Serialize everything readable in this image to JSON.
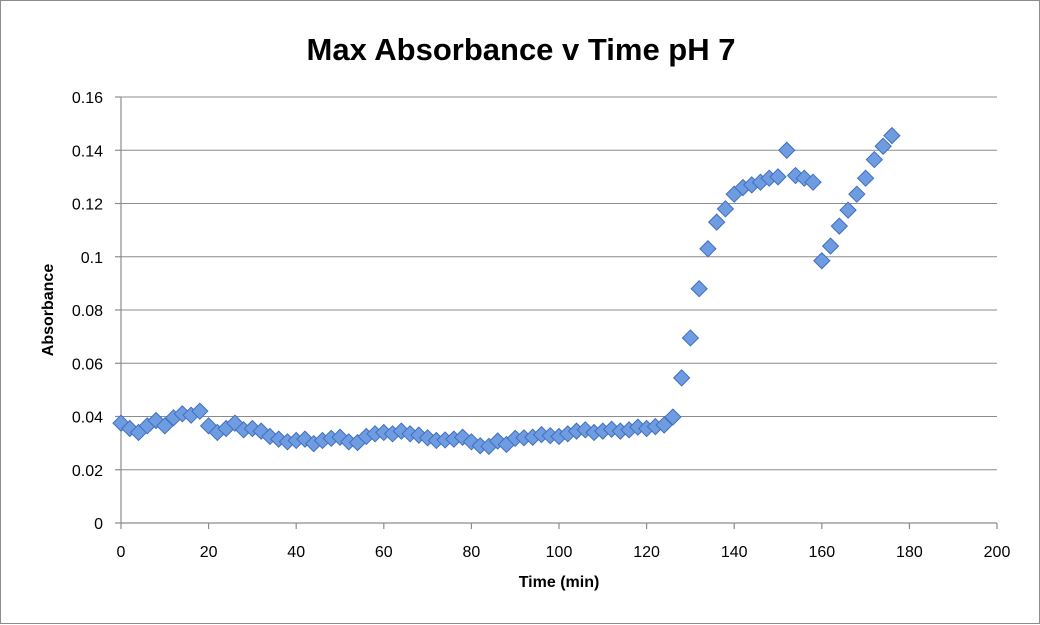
{
  "chart_data": {
    "type": "scatter",
    "title": "Max Absorbance v Time pH 7",
    "xlabel": "Time (min)",
    "ylabel": "Absorbance",
    "xlim": [
      0,
      200
    ],
    "ylim": [
      0,
      0.16
    ],
    "xticks": [
      "0",
      "20",
      "40",
      "60",
      "80",
      "100",
      "120",
      "140",
      "160",
      "180",
      "200"
    ],
    "yticks": [
      "0",
      "0.02",
      "0.04",
      "0.06",
      "0.08",
      "0.1",
      "0.12",
      "0.14",
      "0.16"
    ],
    "grid": true,
    "legend": "none",
    "marker": "diamond",
    "series_color": "#6f9be0",
    "x": [
      0,
      2,
      4,
      6,
      8,
      10,
      12,
      14,
      16,
      18,
      20,
      22,
      24,
      26,
      28,
      30,
      32,
      34,
      36,
      38,
      40,
      42,
      44,
      46,
      48,
      50,
      52,
      54,
      56,
      58,
      60,
      62,
      64,
      66,
      68,
      70,
      72,
      74,
      76,
      78,
      80,
      82,
      84,
      86,
      88,
      90,
      92,
      94,
      96,
      98,
      100,
      102,
      104,
      106,
      108,
      110,
      112,
      114,
      116,
      118,
      120,
      122,
      124,
      126,
      128,
      130,
      132,
      134,
      136,
      138,
      140,
      142,
      144,
      146,
      148,
      150,
      152,
      154,
      156,
      158,
      160,
      162,
      164,
      166,
      168,
      170,
      172,
      174,
      176
    ],
    "y": [
      0.0375,
      0.0355,
      0.034,
      0.0365,
      0.0385,
      0.0365,
      0.0395,
      0.041,
      0.0405,
      0.042,
      0.0365,
      0.034,
      0.0355,
      0.0375,
      0.035,
      0.0355,
      0.0345,
      0.0325,
      0.0315,
      0.0305,
      0.031,
      0.0315,
      0.0298,
      0.031,
      0.0318,
      0.0322,
      0.0305,
      0.0302,
      0.0325,
      0.0335,
      0.034,
      0.0335,
      0.0345,
      0.0335,
      0.033,
      0.032,
      0.031,
      0.0312,
      0.0315,
      0.0322,
      0.0305,
      0.029,
      0.0288,
      0.0308,
      0.0295,
      0.0318,
      0.032,
      0.0322,
      0.0332,
      0.0328,
      0.0325,
      0.0335,
      0.0345,
      0.035,
      0.034,
      0.0345,
      0.0352,
      0.0345,
      0.035,
      0.036,
      0.0355,
      0.0362,
      0.0368,
      0.0398,
      0.0545,
      0.0695,
      0.088,
      0.103,
      0.113,
      0.118,
      0.1235,
      0.126,
      0.127,
      0.128,
      0.1295,
      0.13,
      0.14,
      0.1305,
      0.1295,
      0.128,
      0.0985,
      0.104,
      0.1115,
      0.1175,
      0.1235,
      0.1295,
      0.1365,
      0.1415,
      0.1455
    ]
  }
}
